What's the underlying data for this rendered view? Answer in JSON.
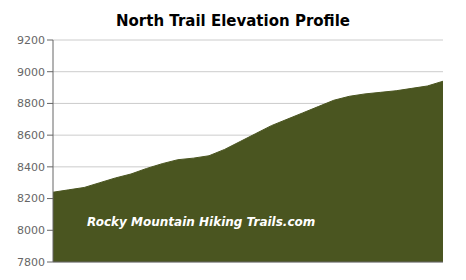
{
  "chart_data": {
    "type": "area",
    "title": "North Trail Elevation Profile",
    "x": [
      0,
      0.04,
      0.08,
      0.12,
      0.16,
      0.2,
      0.24,
      0.28,
      0.32,
      0.36,
      0.4,
      0.44,
      0.48,
      0.52,
      0.56,
      0.6,
      0.64,
      0.68,
      0.72,
      0.76,
      0.8,
      0.84,
      0.88,
      0.92,
      0.96,
      1.0
    ],
    "values": [
      8240,
      8255,
      8270,
      8300,
      8330,
      8355,
      8390,
      8420,
      8445,
      8455,
      8470,
      8510,
      8560,
      8610,
      8660,
      8700,
      8740,
      8780,
      8820,
      8845,
      8860,
      8870,
      8880,
      8895,
      8910,
      8940
    ],
    "color": "#4a5520",
    "xlim": [
      0,
      1
    ],
    "ylim": [
      7800,
      9200
    ],
    "yticks": [
      7800,
      8000,
      8200,
      8400,
      8600,
      8800,
      9000,
      9200
    ],
    "grid": true,
    "tick_labels": "y",
    "annotations": [
      {
        "text": "Rocky Mountain Hiking Trails.com",
        "color": "#ffffff"
      }
    ]
  }
}
